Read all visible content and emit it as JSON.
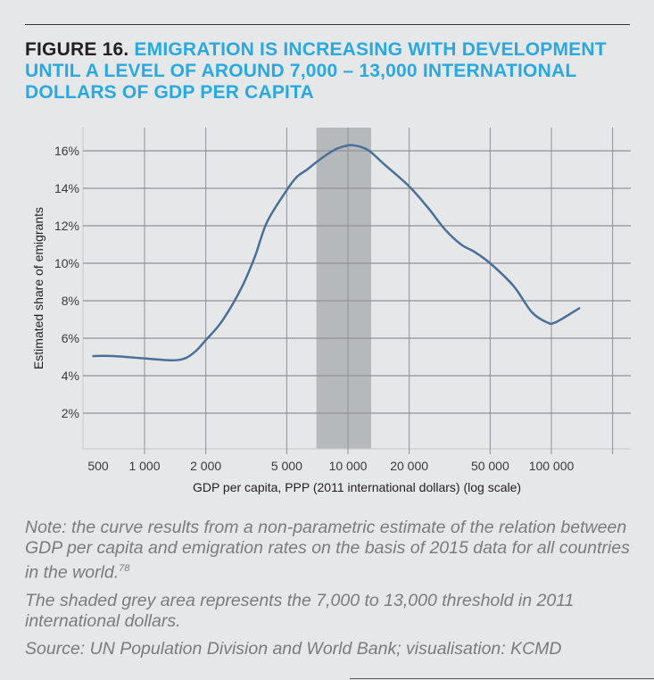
{
  "title": {
    "figure_label": "FIGURE 16.",
    "text": "EMIGRATION IS INCREASING WITH DEVELOPMENT UNTIL A LEVEL OF AROUND 7,000 – 13,000 INTERNATIONAL DOLLARS OF GDP PER CAPITA"
  },
  "notes": {
    "note": "Note: the curve results from a non-parametric estimate of the relation between GDP per capita and emigration rates on the basis of 2015 data for all countries in the world.",
    "note_ref": "78",
    "shaded": "The shaded grey area represents the 7,000 to 13,000 threshold in 2011 international dollars.",
    "source": "Source: UN Population Division and World Bank; visualisation: KCMD"
  },
  "colors": {
    "line": "#4a6f98",
    "shade": "#b6b9bc",
    "title": "#29a9e0",
    "grid": "#8f9194"
  },
  "chart_data": {
    "type": "line",
    "xscale": "log",
    "xlabel": "GDP per capita, PPP (2011 international dollars) (log scale)",
    "ylabel": "Estimated share of emigrants",
    "xlim": [
      500,
      250000
    ],
    "ylim": [
      0,
      17
    ],
    "x_ticks": [
      {
        "value": 500,
        "label": "500"
      },
      {
        "value": 1000,
        "label": "1 000"
      },
      {
        "value": 2000,
        "label": "2 000"
      },
      {
        "value": 5000,
        "label": "5 000"
      },
      {
        "value": 10000,
        "label": "10 000"
      },
      {
        "value": 20000,
        "label": "20 000"
      },
      {
        "value": 50000,
        "label": "50 000"
      },
      {
        "value": 100000,
        "label": "100 000"
      }
    ],
    "x_gridlines": [
      1000,
      2000,
      5000,
      10000,
      20000,
      50000,
      100000,
      200000
    ],
    "y_ticks": [
      {
        "value": 2,
        "label": "2%"
      },
      {
        "value": 4,
        "label": "4%"
      },
      {
        "value": 6,
        "label": "6%"
      },
      {
        "value": 8,
        "label": "8%"
      },
      {
        "value": 10,
        "label": "10%"
      },
      {
        "value": 12,
        "label": "12%"
      },
      {
        "value": 14,
        "label": "14%"
      },
      {
        "value": 16,
        "label": "16%"
      }
    ],
    "grid": true,
    "shaded_range": [
      7000,
      13000
    ],
    "series": [
      {
        "name": "Estimated share of emigrants",
        "x": [
          560,
          700,
          1000,
          1370,
          1600,
          1800,
          2000,
          2400,
          3000,
          3500,
          4000,
          5000,
          5600,
          6300,
          7000,
          8000,
          9000,
          10500,
          12500,
          15000,
          20000,
          25000,
          30000,
          36000,
          42000,
          50000,
          65000,
          80000,
          95000,
          105000,
          137000
        ],
        "y": [
          5.05,
          5.05,
          4.92,
          4.82,
          4.95,
          5.35,
          5.9,
          6.9,
          8.7,
          10.4,
          12.2,
          13.9,
          14.6,
          15.0,
          15.4,
          15.85,
          16.15,
          16.3,
          16.05,
          15.3,
          14.1,
          12.9,
          11.8,
          11.0,
          10.6,
          10.0,
          8.8,
          7.4,
          6.85,
          6.85,
          7.6
        ]
      }
    ]
  }
}
